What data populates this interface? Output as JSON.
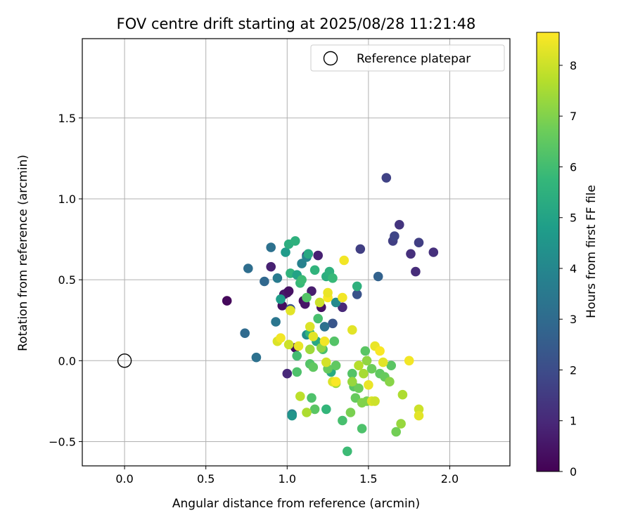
{
  "chart_data": {
    "type": "scatter",
    "title": "FOV centre drift starting at 2025/08/28 11:21:48",
    "xlabel": "Angular distance from reference (arcmin)",
    "ylabel": "Rotation from reference (arcmin)",
    "xlim": [
      -0.26,
      2.37
    ],
    "ylim": [
      -0.65,
      1.99
    ],
    "xticks": [
      0.0,
      0.5,
      1.0,
      1.5,
      2.0
    ],
    "xtick_labels": [
      "0.0",
      "0.5",
      "1.0",
      "1.5",
      "2.0"
    ],
    "yticks": [
      -0.5,
      0.0,
      0.5,
      1.0,
      1.5
    ],
    "ytick_labels": [
      "−0.5",
      "0.0",
      "0.5",
      "1.0",
      "1.5"
    ],
    "grid": true,
    "legend": {
      "position": "top-right",
      "entries": [
        "Reference platepar"
      ]
    },
    "reference_point": {
      "name": "Reference platepar",
      "x": 0.0,
      "y": 0.0
    },
    "colorbar": {
      "label": "Hours from first FF file",
      "range": [
        0,
        8.65
      ],
      "ticks": [
        0,
        1,
        2,
        3,
        4,
        5,
        6,
        7,
        8
      ],
      "tick_labels": [
        "0",
        "1",
        "2",
        "3",
        "4",
        "5",
        "6",
        "7",
        "8"
      ],
      "colormap": "viridis"
    },
    "points": [
      {
        "x": 0.63,
        "y": 0.37,
        "c": 0.2
      },
      {
        "x": 0.9,
        "y": 0.58,
        "c": 0.8
      },
      {
        "x": 0.97,
        "y": 0.34,
        "c": 0.3
      },
      {
        "x": 0.98,
        "y": 0.41,
        "c": 0.5
      },
      {
        "x": 1.0,
        "y": 0.42,
        "c": 0.6
      },
      {
        "x": 1.01,
        "y": 0.43,
        "c": 0.4
      },
      {
        "x": 1.1,
        "y": 0.37,
        "c": 0.3
      },
      {
        "x": 1.11,
        "y": 0.35,
        "c": 0.5
      },
      {
        "x": 1.12,
        "y": 0.65,
        "c": 0.9
      },
      {
        "x": 1.15,
        "y": 0.43,
        "c": 0.7
      },
      {
        "x": 1.19,
        "y": 0.65,
        "c": 0.8
      },
      {
        "x": 1.21,
        "y": 0.33,
        "c": 0.4
      },
      {
        "x": 1.34,
        "y": 0.33,
        "c": 1.0
      },
      {
        "x": 1.0,
        "y": -0.08,
        "c": 1.0
      },
      {
        "x": 1.05,
        "y": 0.08,
        "c": 0.3
      },
      {
        "x": 1.45,
        "y": 0.69,
        "c": 1.6
      },
      {
        "x": 1.61,
        "y": 1.13,
        "c": 1.7
      },
      {
        "x": 1.65,
        "y": 0.74,
        "c": 1.6
      },
      {
        "x": 1.66,
        "y": 0.77,
        "c": 1.8
      },
      {
        "x": 1.69,
        "y": 0.84,
        "c": 1.3
      },
      {
        "x": 1.76,
        "y": 0.66,
        "c": 1.2
      },
      {
        "x": 1.79,
        "y": 0.55,
        "c": 1.1
      },
      {
        "x": 1.81,
        "y": 0.73,
        "c": 1.6
      },
      {
        "x": 1.9,
        "y": 0.67,
        "c": 1.2
      },
      {
        "x": 1.43,
        "y": 0.41,
        "c": 2.2
      },
      {
        "x": 1.28,
        "y": 0.23,
        "c": 2.3
      },
      {
        "x": 1.23,
        "y": 0.21,
        "c": 3.2
      },
      {
        "x": 1.56,
        "y": 0.52,
        "c": 2.7
      },
      {
        "x": 1.02,
        "y": 0.32,
        "c": 2.1
      },
      {
        "x": 0.74,
        "y": 0.17,
        "c": 3.0
      },
      {
        "x": 0.76,
        "y": 0.57,
        "c": 3.1
      },
      {
        "x": 0.81,
        "y": 0.02,
        "c": 3.2
      },
      {
        "x": 0.86,
        "y": 0.49,
        "c": 2.9
      },
      {
        "x": 0.9,
        "y": 0.7,
        "c": 3.2
      },
      {
        "x": 0.93,
        "y": 0.24,
        "c": 3.4
      },
      {
        "x": 0.94,
        "y": 0.51,
        "c": 3.6
      },
      {
        "x": 1.03,
        "y": -0.33,
        "c": 3.9
      },
      {
        "x": 1.03,
        "y": -0.34,
        "c": 4.5
      },
      {
        "x": 1.09,
        "y": 0.6,
        "c": 3.8
      },
      {
        "x": 1.12,
        "y": 0.64,
        "c": 3.9
      },
      {
        "x": 1.12,
        "y": 0.16,
        "c": 4.2
      },
      {
        "x": 1.3,
        "y": 0.36,
        "c": 4.1
      },
      {
        "x": 0.96,
        "y": 0.38,
        "c": 4.8
      },
      {
        "x": 0.99,
        "y": 0.67,
        "c": 4.7
      },
      {
        "x": 1.01,
        "y": 0.72,
        "c": 5.4
      },
      {
        "x": 1.02,
        "y": 0.54,
        "c": 5.6
      },
      {
        "x": 1.05,
        "y": 0.74,
        "c": 5.5
      },
      {
        "x": 1.06,
        "y": 0.53,
        "c": 5.0
      },
      {
        "x": 1.08,
        "y": 0.48,
        "c": 5.8
      },
      {
        "x": 1.09,
        "y": 0.5,
        "c": 5.9
      },
      {
        "x": 1.12,
        "y": 0.39,
        "c": 6.3
      },
      {
        "x": 1.13,
        "y": 0.66,
        "c": 5.2
      },
      {
        "x": 1.14,
        "y": 0.17,
        "c": 5.7
      },
      {
        "x": 1.17,
        "y": 0.56,
        "c": 5.6
      },
      {
        "x": 1.18,
        "y": 0.12,
        "c": 5.2
      },
      {
        "x": 1.22,
        "y": 0.07,
        "c": 6.1
      },
      {
        "x": 1.24,
        "y": 0.52,
        "c": 5.4
      },
      {
        "x": 1.24,
        "y": -0.3,
        "c": 5.7
      },
      {
        "x": 1.26,
        "y": 0.55,
        "c": 5.5
      },
      {
        "x": 1.27,
        "y": -0.07,
        "c": 5.3
      },
      {
        "x": 1.28,
        "y": 0.51,
        "c": 5.8
      },
      {
        "x": 1.43,
        "y": 0.46,
        "c": 5.5
      },
      {
        "x": 1.37,
        "y": -0.56,
        "c": 5.9
      },
      {
        "x": 1.19,
        "y": 0.26,
        "c": 6.1
      },
      {
        "x": 1.06,
        "y": -0.07,
        "c": 6.2
      },
      {
        "x": 1.06,
        "y": 0.03,
        "c": 6.0
      },
      {
        "x": 1.14,
        "y": -0.02,
        "c": 6.3
      },
      {
        "x": 1.16,
        "y": -0.04,
        "c": 6.5
      },
      {
        "x": 1.15,
        "y": -0.23,
        "c": 6.2
      },
      {
        "x": 1.17,
        "y": -0.3,
        "c": 6.4
      },
      {
        "x": 1.25,
        "y": -0.05,
        "c": 6.6
      },
      {
        "x": 1.29,
        "y": 0.12,
        "c": 6.3
      },
      {
        "x": 1.3,
        "y": -0.03,
        "c": 6.5
      },
      {
        "x": 1.34,
        "y": -0.37,
        "c": 6.1
      },
      {
        "x": 1.4,
        "y": -0.08,
        "c": 6.3
      },
      {
        "x": 1.41,
        "y": -0.16,
        "c": 6.4
      },
      {
        "x": 1.42,
        "y": -0.23,
        "c": 6.6
      },
      {
        "x": 1.44,
        "y": -0.17,
        "c": 6.7
      },
      {
        "x": 1.46,
        "y": -0.42,
        "c": 6.2
      },
      {
        "x": 1.48,
        "y": 0.06,
        "c": 6.4
      },
      {
        "x": 1.49,
        "y": -0.25,
        "c": 6.9
      },
      {
        "x": 1.52,
        "y": -0.05,
        "c": 6.7
      },
      {
        "x": 1.57,
        "y": -0.08,
        "c": 6.5
      },
      {
        "x": 1.6,
        "y": -0.1,
        "c": 6.6
      },
      {
        "x": 1.64,
        "y": -0.03,
        "c": 6.4
      },
      {
        "x": 1.67,
        "y": -0.44,
        "c": 6.8
      },
      {
        "x": 1.39,
        "y": -0.32,
        "c": 6.9
      },
      {
        "x": 1.21,
        "y": 0.08,
        "c": 7.2
      },
      {
        "x": 1.14,
        "y": 0.07,
        "c": 7.4
      },
      {
        "x": 1.46,
        "y": -0.26,
        "c": 7.0
      },
      {
        "x": 1.63,
        "y": -0.13,
        "c": 7.1
      },
      {
        "x": 1.7,
        "y": -0.39,
        "c": 7.3
      },
      {
        "x": 1.71,
        "y": -0.21,
        "c": 7.6
      },
      {
        "x": 1.44,
        "y": -0.03,
        "c": 7.7
      },
      {
        "x": 1.47,
        "y": -0.08,
        "c": 7.5
      },
      {
        "x": 1.49,
        "y": 0.0,
        "c": 7.2
      },
      {
        "x": 1.12,
        "y": -0.32,
        "c": 7.6
      },
      {
        "x": 1.08,
        "y": -0.22,
        "c": 7.8
      },
      {
        "x": 1.3,
        "y": -0.14,
        "c": 7.4
      },
      {
        "x": 1.4,
        "y": -0.13,
        "c": 7.3
      },
      {
        "x": 1.81,
        "y": -0.3,
        "c": 8.0
      },
      {
        "x": 1.81,
        "y": -0.34,
        "c": 8.3
      },
      {
        "x": 0.94,
        "y": 0.12,
        "c": 8.2
      },
      {
        "x": 0.96,
        "y": 0.14,
        "c": 8.5
      },
      {
        "x": 1.01,
        "y": 0.1,
        "c": 8.0
      },
      {
        "x": 1.02,
        "y": 0.31,
        "c": 8.3
      },
      {
        "x": 1.07,
        "y": 0.09,
        "c": 8.4
      },
      {
        "x": 1.14,
        "y": 0.21,
        "c": 8.2
      },
      {
        "x": 1.2,
        "y": 0.36,
        "c": 8.0
      },
      {
        "x": 1.23,
        "y": 0.12,
        "c": 8.5
      },
      {
        "x": 1.24,
        "y": -0.01,
        "c": 8.1
      },
      {
        "x": 1.25,
        "y": 0.39,
        "c": 8.6
      },
      {
        "x": 1.25,
        "y": 0.42,
        "c": 8.4
      },
      {
        "x": 1.28,
        "y": -0.13,
        "c": 8.2
      },
      {
        "x": 1.3,
        "y": -0.13,
        "c": 8.6
      },
      {
        "x": 1.34,
        "y": 0.39,
        "c": 8.5
      },
      {
        "x": 1.35,
        "y": 0.62,
        "c": 8.5
      },
      {
        "x": 1.4,
        "y": 0.19,
        "c": 8.3
      },
      {
        "x": 1.5,
        "y": -0.15,
        "c": 8.4
      },
      {
        "x": 1.52,
        "y": -0.25,
        "c": 8.2
      },
      {
        "x": 1.54,
        "y": -0.25,
        "c": 8.0
      },
      {
        "x": 1.54,
        "y": 0.09,
        "c": 8.4
      },
      {
        "x": 1.57,
        "y": 0.06,
        "c": 8.6
      },
      {
        "x": 1.59,
        "y": -0.01,
        "c": 8.3
      },
      {
        "x": 1.75,
        "y": 0.0,
        "c": 8.5
      },
      {
        "x": 1.16,
        "y": 0.15,
        "c": 8.3
      }
    ]
  }
}
